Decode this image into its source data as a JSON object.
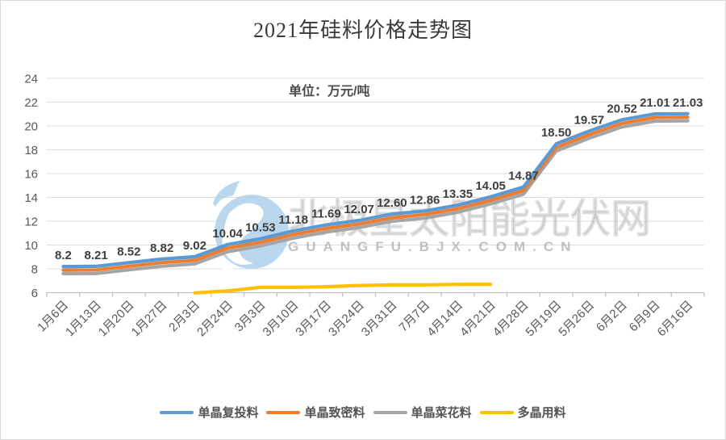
{
  "watermark": {
    "brand_text": "北极星太阳能光伏网",
    "domain_text": "GUANGFU.BJX.COM.CN",
    "logo_color": "#a9cde9",
    "text_color": "#8f8f8f"
  },
  "chart_data": {
    "type": "line",
    "title": "2021年硅料价格走势图",
    "unit_note": "单位：万元/吨",
    "xlabel": "",
    "ylabel": "",
    "ylim": [
      6,
      24
    ],
    "ystep": 2,
    "grid": true,
    "legend_position": "bottom",
    "axis_label_color": "#595959",
    "gridline_color": "#dcdcdc",
    "axisline_color": "#bfbfbf",
    "categories": [
      "1月6日",
      "1月13日",
      "1月20日",
      "1月27日",
      "2月3日",
      "2月24日",
      "3月3日",
      "3月10日",
      "3月17日",
      "3月24日",
      "3月31日",
      "7月7日",
      "4月14日",
      "4月21日",
      "4月28日",
      "5月19日",
      "5月26日",
      "6月2日",
      "6月9日",
      "6月16日"
    ],
    "series": [
      {
        "name": "单晶复投料",
        "color": "#5B9BD5",
        "values": [
          8.2,
          8.21,
          8.52,
          8.82,
          9.02,
          10.04,
          10.53,
          11.18,
          11.69,
          12.07,
          12.6,
          12.86,
          13.35,
          14.05,
          14.87,
          18.5,
          19.57,
          20.52,
          21.01,
          21.03
        ],
        "labels": [
          "8.2",
          "8.21",
          "8.52",
          "8.82",
          "9.02",
          "10.04",
          "10.53",
          "11.18",
          "11.69",
          "12.07",
          "12.60",
          "12.86",
          "13.35",
          "14.05",
          "14.87",
          "18.50",
          "19.57",
          "20.52",
          "21.01",
          "21.03"
        ]
      },
      {
        "name": "单晶致密料",
        "color": "#ED7D31",
        "values": [
          7.9,
          7.91,
          8.22,
          8.52,
          8.72,
          9.74,
          10.23,
          10.88,
          11.39,
          11.77,
          12.3,
          12.56,
          13.05,
          13.75,
          14.57,
          18.2,
          19.27,
          20.22,
          20.71,
          20.73
        ]
      },
      {
        "name": "单晶菜花料",
        "color": "#A5A5A5",
        "values": [
          7.6,
          7.61,
          7.92,
          8.22,
          8.42,
          9.44,
          9.93,
          10.58,
          11.09,
          11.47,
          12.0,
          12.26,
          12.75,
          13.45,
          14.27,
          17.9,
          18.97,
          19.92,
          20.41,
          20.43
        ]
      },
      {
        "name": "多晶用料",
        "color": "#FFC000",
        "values": [
          null,
          null,
          null,
          null,
          5.98,
          6.15,
          6.45,
          6.45,
          6.5,
          6.6,
          6.65,
          6.65,
          6.7,
          6.7,
          null,
          null,
          null,
          null,
          null,
          null
        ]
      }
    ]
  }
}
